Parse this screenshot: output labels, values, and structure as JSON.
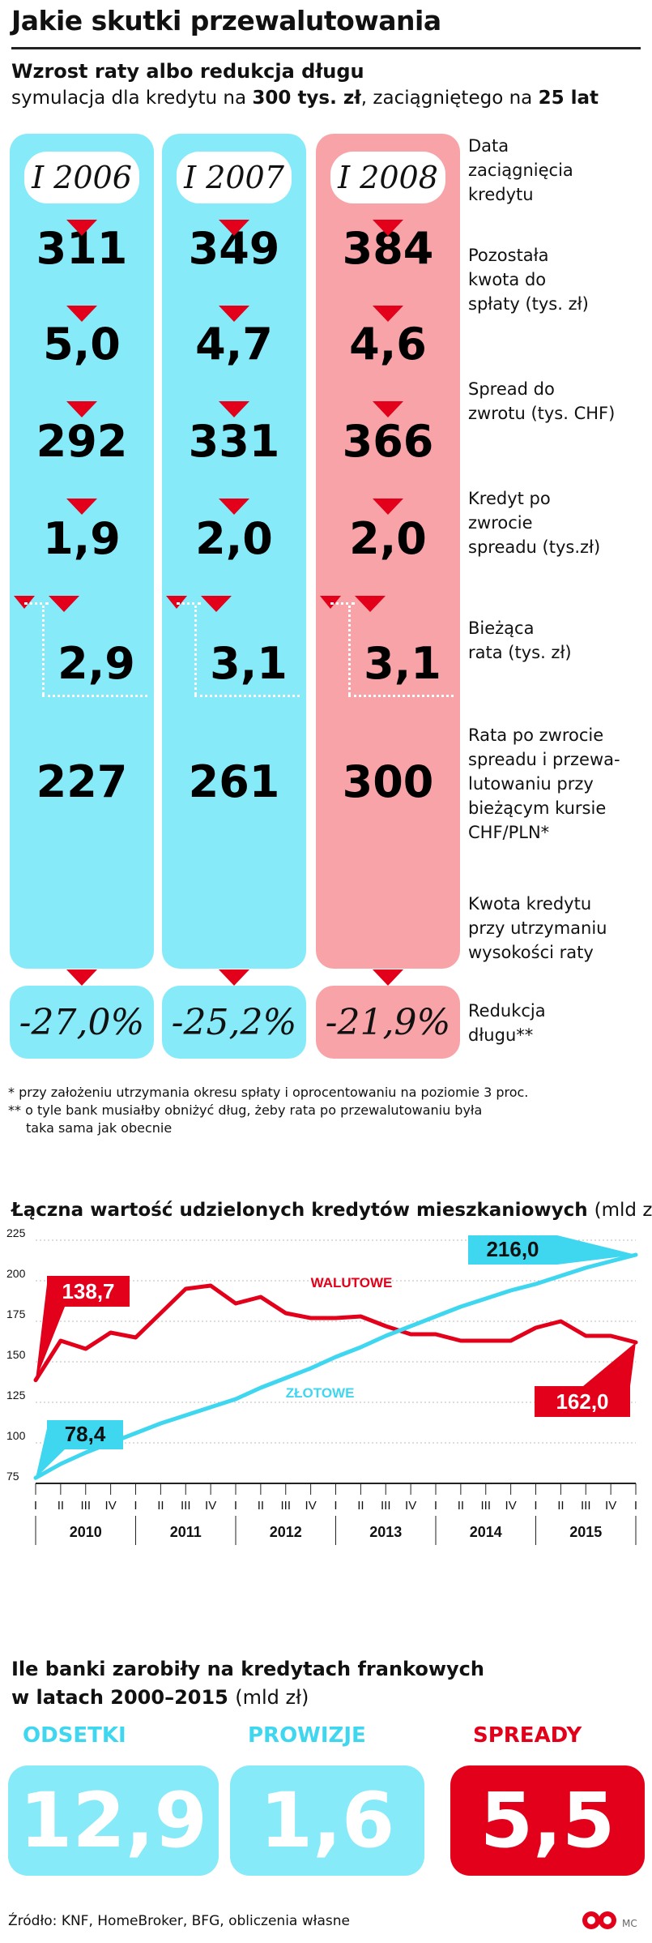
{
  "title": "Jakie skutki przewalutowania",
  "simulation": {
    "title": "Wzrost raty albo redukcja długu",
    "subtitle_parts": [
      {
        "text": "symulacja dla kredytu na ",
        "bold": false
      },
      {
        "text": "300 tys. zł",
        "bold": true
      },
      {
        "text": ", zaciągniętego na ",
        "bold": false
      },
      {
        "text": "25 lat",
        "bold": true
      }
    ],
    "columns": [
      {
        "date": "I 2006",
        "remaining": "311",
        "spread": "5,0",
        "credit_after": "292",
        "current_rate": "1,9",
        "rate_after": "2,9",
        "amount": "227",
        "reduction": "-27,0%"
      },
      {
        "date": "I 2007",
        "remaining": "349",
        "spread": "4,7",
        "credit_after": "331",
        "current_rate": "2,0",
        "rate_after": "3,1",
        "amount": "261",
        "reduction": "-25,2%"
      },
      {
        "date": "I 2008",
        "remaining": "384",
        "spread": "4,6",
        "credit_after": "366",
        "current_rate": "2,0",
        "rate_after": "3,1",
        "amount": "300",
        "reduction": "-21,9%"
      }
    ],
    "row_labels": [
      [
        "Data",
        "zaciągnięcia",
        "kredytu"
      ],
      [
        "Pozostała",
        "kwota do",
        "spłaty (tys. zł)"
      ],
      [
        "Spread do",
        "zwrotu (tys. CHF)"
      ],
      [
        "Kredyt po",
        "zwrocie",
        "spreadu (tys.zł)"
      ],
      [
        "Bieżąca",
        "rata (tys. zł)"
      ],
      [
        "Rata po zwrocie",
        "spreadu i przewa-",
        "lutowaniu przy",
        "bieżącym kursie",
        "CHF/PLN*"
      ],
      [
        "Kwota kredytu",
        "przy utrzymaniu",
        "wysokości raty"
      ],
      [
        "Redukcja",
        "długu**"
      ]
    ],
    "notes": [
      "* przy założeniu utrzymania okresu spłaty i oprocentowaniu na poziomie 3 proc.",
      "** o tyle bank musiałby obniżyć dług, żeby rata po przewalutowaniu była",
      "taka sama jak obecnie"
    ]
  },
  "colors": {
    "cyan": "#86eaf8",
    "cyan_bright": "#3fd6f0",
    "pink": "#f7a3a8",
    "red": "#e2001a",
    "cyan_box": "#7ee9f4"
  },
  "chart_data": {
    "type": "line",
    "title": "Łączna wartość udzielonych kredytów mieszkaniowych",
    "unit": "(mld zł)",
    "ylim": [
      75,
      225
    ],
    "y_ticks": [
      "75",
      "100",
      "125",
      "150",
      "175",
      "200",
      "225"
    ],
    "x_ticks": [
      "I",
      "II",
      "III",
      "IV",
      "I",
      "II",
      "III",
      "IV",
      "I",
      "II",
      "III",
      "IV",
      "I",
      "II",
      "III",
      "IV",
      "I",
      "II",
      "III",
      "IV",
      "I",
      "II",
      "III",
      "IV",
      "I"
    ],
    "years": [
      "2010",
      "2011",
      "2012",
      "2013",
      "2014",
      "2015"
    ],
    "grid": true,
    "series": [
      {
        "name": "WALUTOWE",
        "color": "#e2001a",
        "values": [
          138.7,
          163,
          158,
          168,
          165,
          180,
          195,
          197,
          186,
          190,
          180,
          177,
          177,
          178,
          172,
          167,
          167,
          163,
          163,
          163,
          171,
          175,
          166,
          166,
          162.0
        ]
      },
      {
        "name": "ZŁOTOWE",
        "color": "#3fd6f0",
        "values": [
          78.4,
          87,
          94,
          100,
          106,
          112,
          117,
          122,
          127,
          134,
          140,
          146,
          153,
          159,
          166,
          172,
          178,
          184,
          189,
          194,
          198,
          203,
          208,
          212,
          216.0
        ]
      }
    ],
    "annotations": [
      {
        "text": "138,7",
        "series": "WALUTOWE",
        "index": 0
      },
      {
        "text": "162,0",
        "series": "WALUTOWE",
        "index": 24
      },
      {
        "text": "78,4",
        "series": "ZŁOTOWE",
        "index": 0
      },
      {
        "text": "216,0",
        "series": "ZŁOTOWE",
        "index": 24
      }
    ]
  },
  "banks": {
    "title_line1": "Ile banki zarobiły na kredytach frankowych",
    "title_line2": "w latach 2000–2015",
    "title_unit": "(mld zł)",
    "items": [
      {
        "label": "ODSETKI",
        "value": "12,9"
      },
      {
        "label": "PROWIZJE",
        "value": "1,6"
      },
      {
        "label": "SPREADY",
        "value": "5,5"
      }
    ]
  },
  "source": "Źródło: KNF, HomeBroker, BFG, obliczenia własne",
  "logo_text": "MC"
}
